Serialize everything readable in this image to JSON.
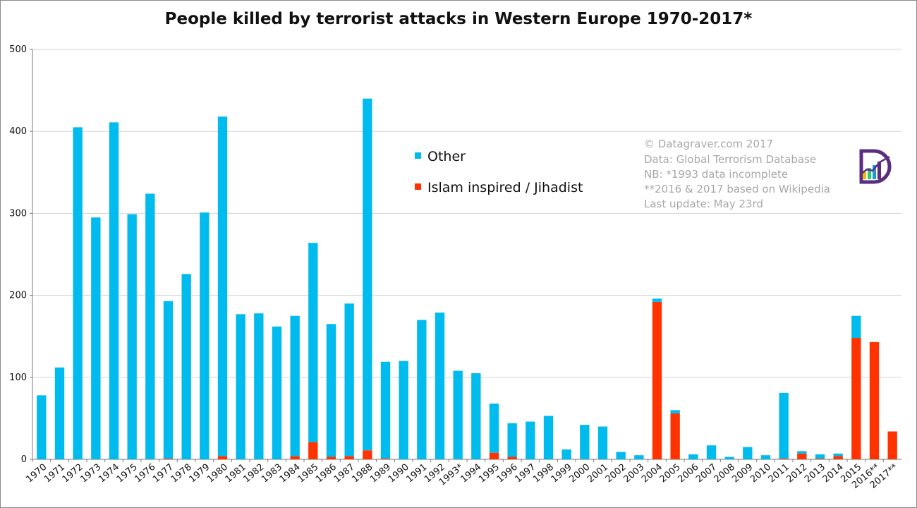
{
  "chart_data": {
    "type": "bar",
    "stacked": true,
    "title": "People killed by terrorist attacks in Western Europe 1970-2017*",
    "xlabel": "",
    "ylabel": "",
    "ylim": [
      0,
      500
    ],
    "yticks": [
      0,
      100,
      200,
      300,
      400,
      500
    ],
    "grid": true,
    "legend_placement": "center",
    "categories": [
      "1970",
      "1971",
      "1972",
      "1973",
      "1974",
      "1975",
      "1976",
      "1977",
      "1978",
      "1979",
      "1980",
      "1981",
      "1982",
      "1983",
      "1984",
      "1985",
      "1986",
      "1987",
      "1988",
      "1989",
      "1990",
      "1991",
      "1992",
      "1993*",
      "1994",
      "1995",
      "1996",
      "1997",
      "1998",
      "1999",
      "2000",
      "2001",
      "2002",
      "2003",
      "2004",
      "2005",
      "2006",
      "2007",
      "2008",
      "2009",
      "2010",
      "2011",
      "2012",
      "2013",
      "2014",
      "2015",
      "2016**",
      "2017**"
    ],
    "series": [
      {
        "name": "Islam inspired / Jihadist",
        "color": "#ff3300",
        "values": [
          0,
          0,
          0,
          0,
          0,
          0,
          0,
          1,
          0,
          0,
          4,
          0,
          0,
          0,
          4,
          21,
          3,
          4,
          11,
          1,
          0,
          0,
          0,
          0,
          0,
          8,
          3,
          0,
          0,
          0,
          0,
          0,
          0,
          0,
          192,
          56,
          0,
          0,
          0,
          0,
          0,
          1,
          7,
          1,
          4,
          148,
          143,
          34
        ]
      },
      {
        "name": "Other",
        "color": "#00bbee",
        "values": [
          78,
          112,
          405,
          295,
          411,
          299,
          324,
          192,
          226,
          301,
          414,
          177,
          178,
          162,
          171,
          243,
          162,
          186,
          429,
          118,
          120,
          170,
          179,
          108,
          105,
          60,
          41,
          46,
          53,
          12,
          42,
          40,
          9,
          5,
          4,
          4,
          6,
          17,
          3,
          15,
          5,
          80,
          3,
          5,
          3,
          27,
          0,
          0
        ]
      }
    ],
    "legend": [
      {
        "label": "Other",
        "color": "#00bbee"
      },
      {
        "label": "Islam inspired / Jihadist",
        "color": "#ff3300"
      }
    ],
    "annotation": [
      "© Datagraver.com 2017",
      "Data: Global Terrorism Database",
      "NB: *1993 data incomplete",
      "**2016 & 2017 based on Wikipedia",
      "Last update: May 23rd"
    ]
  },
  "logo": {
    "name": "datagraver-logo",
    "colors": [
      "#5b2d82",
      "#f5b800",
      "#2ecc71",
      "#1a9bd7"
    ]
  }
}
